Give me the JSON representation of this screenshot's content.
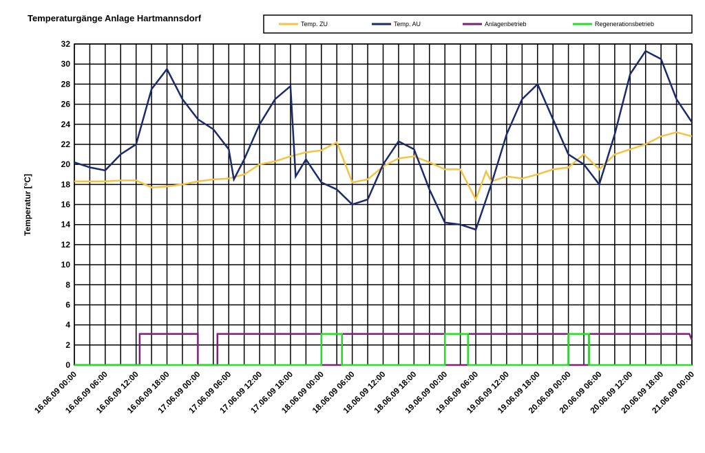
{
  "chart_data": {
    "type": "line",
    "title": "Temperaturgänge Anlage Hartmannsdorf",
    "ylabel": "Temperatur [°C]",
    "xlim": [
      0,
      120
    ],
    "ylim": [
      0,
      32
    ],
    "yticks": [
      0,
      2,
      4,
      6,
      8,
      10,
      12,
      14,
      16,
      18,
      20,
      22,
      24,
      26,
      28,
      30,
      32
    ],
    "xticks": [
      {
        "value": 0,
        "label": "16.06.09 00:00"
      },
      {
        "value": 6,
        "label": "16.06.09 06:00"
      },
      {
        "value": 12,
        "label": "16.06.09 12:00"
      },
      {
        "value": 18,
        "label": "16.06.09 18:00"
      },
      {
        "value": 24,
        "label": "17.06.09 00:00"
      },
      {
        "value": 30,
        "label": "17.06.09 06:00"
      },
      {
        "value": 36,
        "label": "17.06.09 12:00"
      },
      {
        "value": 42,
        "label": "17.06.09 18:00"
      },
      {
        "value": 48,
        "label": "18.06.09 00:00"
      },
      {
        "value": 54,
        "label": "18.06.09 06:00"
      },
      {
        "value": 60,
        "label": "18.06.09 12:00"
      },
      {
        "value": 66,
        "label": "18.06.09 18:00"
      },
      {
        "value": 72,
        "label": "19.06.09 00:00"
      },
      {
        "value": 78,
        "label": "19.06.09 06:00"
      },
      {
        "value": 84,
        "label": "19.06.09 12:00"
      },
      {
        "value": 90,
        "label": "19.06.09 18:00"
      },
      {
        "value": 96,
        "label": "20.06.09 00:00"
      },
      {
        "value": 102,
        "label": "20.06.09 06:00"
      },
      {
        "value": 108,
        "label": "20.06.09 12:00"
      },
      {
        "value": 114,
        "label": "20.06.09 18:00"
      },
      {
        "value": 120,
        "label": "21.06.09 00:00"
      }
    ],
    "grid": true,
    "series": [
      {
        "name": "Temp. ZU",
        "color": "#f5c242",
        "x": [
          0,
          3,
          6,
          9,
          12,
          15,
          18,
          21,
          24,
          27,
          30,
          33,
          36,
          39,
          42,
          45,
          48,
          51,
          54,
          57,
          60,
          63,
          66,
          69,
          72,
          75,
          78,
          80,
          81,
          84,
          87,
          90,
          93,
          96,
          99,
          102,
          105,
          108,
          111,
          114,
          117,
          120
        ],
        "values": [
          18.3,
          18.3,
          18.3,
          18.4,
          18.4,
          17.7,
          17.8,
          18.0,
          18.3,
          18.5,
          18.6,
          19.0,
          20.0,
          20.3,
          20.8,
          21.2,
          21.4,
          22.2,
          18.2,
          18.5,
          19.8,
          20.6,
          20.8,
          20.2,
          19.5,
          19.5,
          16.5,
          19.3,
          18.3,
          18.8,
          18.6,
          19.0,
          19.5,
          19.7,
          21.0,
          19.5,
          21.0,
          21.5,
          22.0,
          22.8,
          23.2,
          22.8
        ]
      },
      {
        "name": "Temp. AU",
        "color": "#1a2a6c",
        "x": [
          0,
          3,
          6,
          9,
          12,
          15,
          18,
          21,
          24,
          27,
          30,
          31,
          33,
          36,
          39,
          42,
          43,
          45,
          48,
          51,
          54,
          57,
          60,
          63,
          66,
          69,
          72,
          75,
          78,
          81,
          84,
          87,
          90,
          93,
          96,
          99,
          102,
          105,
          108,
          111,
          114,
          117,
          120
        ],
        "values": [
          20.2,
          19.7,
          19.4,
          21.0,
          22.0,
          27.5,
          29.5,
          26.5,
          24.5,
          23.5,
          21.5,
          18.5,
          20.5,
          24.0,
          26.5,
          27.8,
          18.8,
          20.5,
          18.2,
          17.5,
          16.0,
          16.5,
          20.0,
          22.3,
          21.5,
          17.5,
          14.2,
          14.0,
          13.5,
          18.0,
          23.0,
          26.5,
          28.0,
          24.5,
          21.0,
          20.0,
          18.0,
          23.0,
          29.0,
          31.3,
          30.5,
          26.5,
          24.2
        ]
      },
      {
        "name": "Anlagenbetrieb",
        "color": "#7b1f7b",
        "x": [
          0,
          12.7,
          12.7,
          24,
          24,
          27.8,
          27.8,
          48,
          48,
          52,
          52,
          72,
          72,
          76.5,
          76.5,
          96,
          96,
          100,
          100,
          119.5,
          120
        ],
        "values": [
          0,
          0,
          3.1,
          3.1,
          0,
          0,
          3.1,
          3.1,
          0,
          0,
          3.1,
          3.1,
          0,
          0,
          3.1,
          3.1,
          0,
          0,
          3.1,
          3.1,
          2.5
        ]
      },
      {
        "name": "Regenerationsbetrieb",
        "color": "#22e022",
        "x": [
          0,
          48,
          48,
          52,
          52,
          72,
          72,
          76.5,
          76.5,
          96,
          96,
          100,
          100,
          120
        ],
        "values": [
          0,
          0,
          3.1,
          3.1,
          0,
          0,
          3.1,
          3.1,
          0,
          0,
          3.1,
          3.1,
          0,
          0
        ]
      }
    ]
  }
}
